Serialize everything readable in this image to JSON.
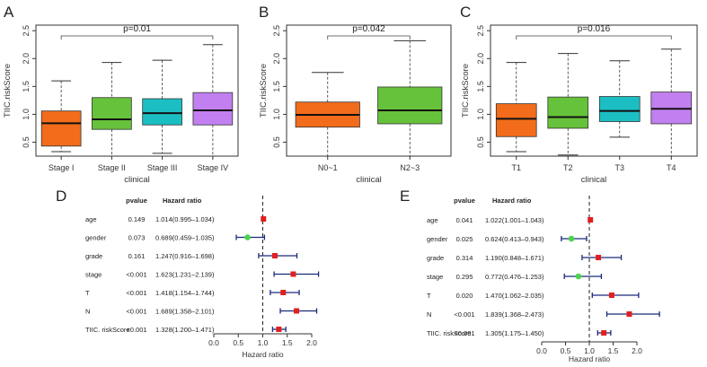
{
  "chart_data": [
    {
      "type": "boxplot",
      "panel_label": "A",
      "ylabel": "TIIC.riskScore",
      "xlabel": "clinical",
      "ylim": [
        0.25,
        2.6
      ],
      "yticks": [
        0.5,
        1.0,
        1.5,
        2.0,
        2.5
      ],
      "ytick_labels": [
        "0.5",
        "1.0",
        "1.5",
        "2.0",
        "2.5"
      ],
      "pvalue_label": "p=0.01",
      "categories": [
        "Stage I",
        "Stage II",
        "Stage III",
        "Stage IV"
      ],
      "colors": [
        "#f26c1b",
        "#66c23a",
        "#1bbfc3",
        "#c27ff0"
      ],
      "boxes": [
        {
          "whisker_low": 0.33,
          "q1": 0.43,
          "median": 0.84,
          "q3": 1.06,
          "whisker_high": 1.6
        },
        {
          "whisker_low": 0.25,
          "q1": 0.73,
          "median": 0.91,
          "q3": 1.3,
          "whisker_high": 1.93
        },
        {
          "whisker_low": 0.3,
          "q1": 0.81,
          "median": 1.02,
          "q3": 1.28,
          "whisker_high": 1.97
        },
        {
          "whisker_low": 0.25,
          "q1": 0.81,
          "median": 1.07,
          "q3": 1.39,
          "whisker_high": 2.25
        }
      ]
    },
    {
      "type": "boxplot",
      "panel_label": "B",
      "ylabel": "TIIC.riskScore",
      "xlabel": "clinical",
      "ylim": [
        0.25,
        2.6
      ],
      "yticks": [
        0.5,
        1.0,
        1.5,
        2.0,
        2.5
      ],
      "ytick_labels": [
        "0.5",
        "1.0",
        "1.5",
        "2.0",
        "2.5"
      ],
      "pvalue_label": "p=0.042",
      "categories": [
        "N0~1",
        "N2~3"
      ],
      "colors": [
        "#f26c1b",
        "#66c23a"
      ],
      "boxes": [
        {
          "whisker_low": 0.25,
          "q1": 0.77,
          "median": 0.99,
          "q3": 1.22,
          "whisker_high": 1.75
        },
        {
          "whisker_low": 0.25,
          "q1": 0.83,
          "median": 1.07,
          "q3": 1.49,
          "whisker_high": 2.32
        }
      ]
    },
    {
      "type": "boxplot",
      "panel_label": "C",
      "ylabel": "TIIC.riskScore",
      "xlabel": "clinical",
      "ylim": [
        0.25,
        2.6
      ],
      "yticks": [
        0.5,
        1.0,
        1.5,
        2.0,
        2.5
      ],
      "ytick_labels": [
        "0.5",
        "1.0",
        "1.5",
        "2.0",
        "2.5"
      ],
      "pvalue_label": "p=0.016",
      "categories": [
        "T1",
        "T2",
        "T3",
        "T4"
      ],
      "colors": [
        "#f26c1b",
        "#66c23a",
        "#1bbfc3",
        "#c27ff0"
      ],
      "boxes": [
        {
          "whisker_low": 0.33,
          "q1": 0.6,
          "median": 0.92,
          "q3": 1.19,
          "whisker_high": 1.93
        },
        {
          "whisker_low": 0.27,
          "q1": 0.75,
          "median": 0.95,
          "q3": 1.31,
          "whisker_high": 2.09
        },
        {
          "whisker_low": 0.59,
          "q1": 0.87,
          "median": 1.06,
          "q3": 1.32,
          "whisker_high": 1.96
        },
        {
          "whisker_low": 0.25,
          "q1": 0.83,
          "median": 1.1,
          "q3": 1.4,
          "whisker_high": 2.17
        }
      ]
    },
    {
      "type": "forest",
      "panel_label": "D",
      "header_pvalue": "pvalue",
      "header_hr": "Hazard ratio",
      "xlabel": "Hazard ratio",
      "xlim": [
        0.0,
        2.0
      ],
      "xticks": [
        0.0,
        0.5,
        1.0,
        1.5,
        2.0
      ],
      "xtick_labels": [
        "0.0",
        "0.5",
        "1.0",
        "1.5",
        "2.0"
      ],
      "reference_line": 1.0,
      "rows": [
        {
          "variable": "age",
          "pvalue": "0.149",
          "hr_text": "1.014(0.995–1.034)",
          "hr": 1.014,
          "lower": 0.995,
          "upper": 1.034,
          "color": "#e02020"
        },
        {
          "variable": "gender",
          "pvalue": "0.073",
          "hr_text": "0.689(0.459–1.035)",
          "hr": 0.689,
          "lower": 0.459,
          "upper": 1.035,
          "color": "#4cd44c"
        },
        {
          "variable": "grade",
          "pvalue": "0.161",
          "hr_text": "1.247(0.916–1.698)",
          "hr": 1.247,
          "lower": 0.916,
          "upper": 1.698,
          "color": "#e02020"
        },
        {
          "variable": "stage",
          "pvalue": "<0.001",
          "hr_text": "1.623(1.231–2.139)",
          "hr": 1.623,
          "lower": 1.231,
          "upper": 2.139,
          "color": "#e02020"
        },
        {
          "variable": "T",
          "pvalue": "<0.001",
          "hr_text": "1.418(1.154–1.744)",
          "hr": 1.418,
          "lower": 1.154,
          "upper": 1.744,
          "color": "#e02020"
        },
        {
          "variable": "N",
          "pvalue": "<0.001",
          "hr_text": "1.689(1.358–2.101)",
          "hr": 1.689,
          "lower": 1.358,
          "upper": 2.101,
          "color": "#e02020"
        },
        {
          "variable": "TIIC. riskScore",
          "pvalue": "<0.001",
          "hr_text": "1.328(1.200–1.471)",
          "hr": 1.328,
          "lower": 1.2,
          "upper": 1.471,
          "color": "#e02020"
        }
      ]
    },
    {
      "type": "forest",
      "panel_label": "E",
      "header_pvalue": "pvalue",
      "header_hr": "Hazard ratio",
      "xlabel": "Hazard ratio",
      "xlim": [
        0.0,
        2.0
      ],
      "xticks": [
        0.0,
        0.5,
        1.0,
        1.5,
        2.0
      ],
      "xtick_labels": [
        "0.0",
        "0.5",
        "1.0",
        "1.5",
        "2.0"
      ],
      "reference_line": 1.0,
      "rows": [
        {
          "variable": "age",
          "pvalue": "0.041",
          "hr_text": "1.022(1.001–1.043)",
          "hr": 1.022,
          "lower": 1.001,
          "upper": 1.043,
          "color": "#e02020"
        },
        {
          "variable": "gender",
          "pvalue": "0.025",
          "hr_text": "0.624(0.413–0.943)",
          "hr": 0.624,
          "lower": 0.413,
          "upper": 0.943,
          "color": "#4cd44c"
        },
        {
          "variable": "grade",
          "pvalue": "0.314",
          "hr_text": "1.190(0.848–1.671)",
          "hr": 1.19,
          "lower": 0.848,
          "upper": 1.671,
          "color": "#e02020"
        },
        {
          "variable": "stage",
          "pvalue": "0.295",
          "hr_text": "0.772(0.476–1.253)",
          "hr": 0.772,
          "lower": 0.476,
          "upper": 1.253,
          "color": "#4cd44c"
        },
        {
          "variable": "T",
          "pvalue": "0.020",
          "hr_text": "1.470(1.062–2.035)",
          "hr": 1.47,
          "lower": 1.062,
          "upper": 2.035,
          "color": "#e02020"
        },
        {
          "variable": "N",
          "pvalue": "<0.001",
          "hr_text": "1.839(1.368–2.473)",
          "hr": 1.839,
          "lower": 1.368,
          "upper": 2.473,
          "color": "#e02020"
        },
        {
          "variable": "TIIC. riskScore",
          "pvalue": "<0.001",
          "hr_text": "1.305(1.175–1.450)",
          "hr": 1.305,
          "lower": 1.175,
          "upper": 1.45,
          "color": "#e02020"
        }
      ]
    }
  ]
}
